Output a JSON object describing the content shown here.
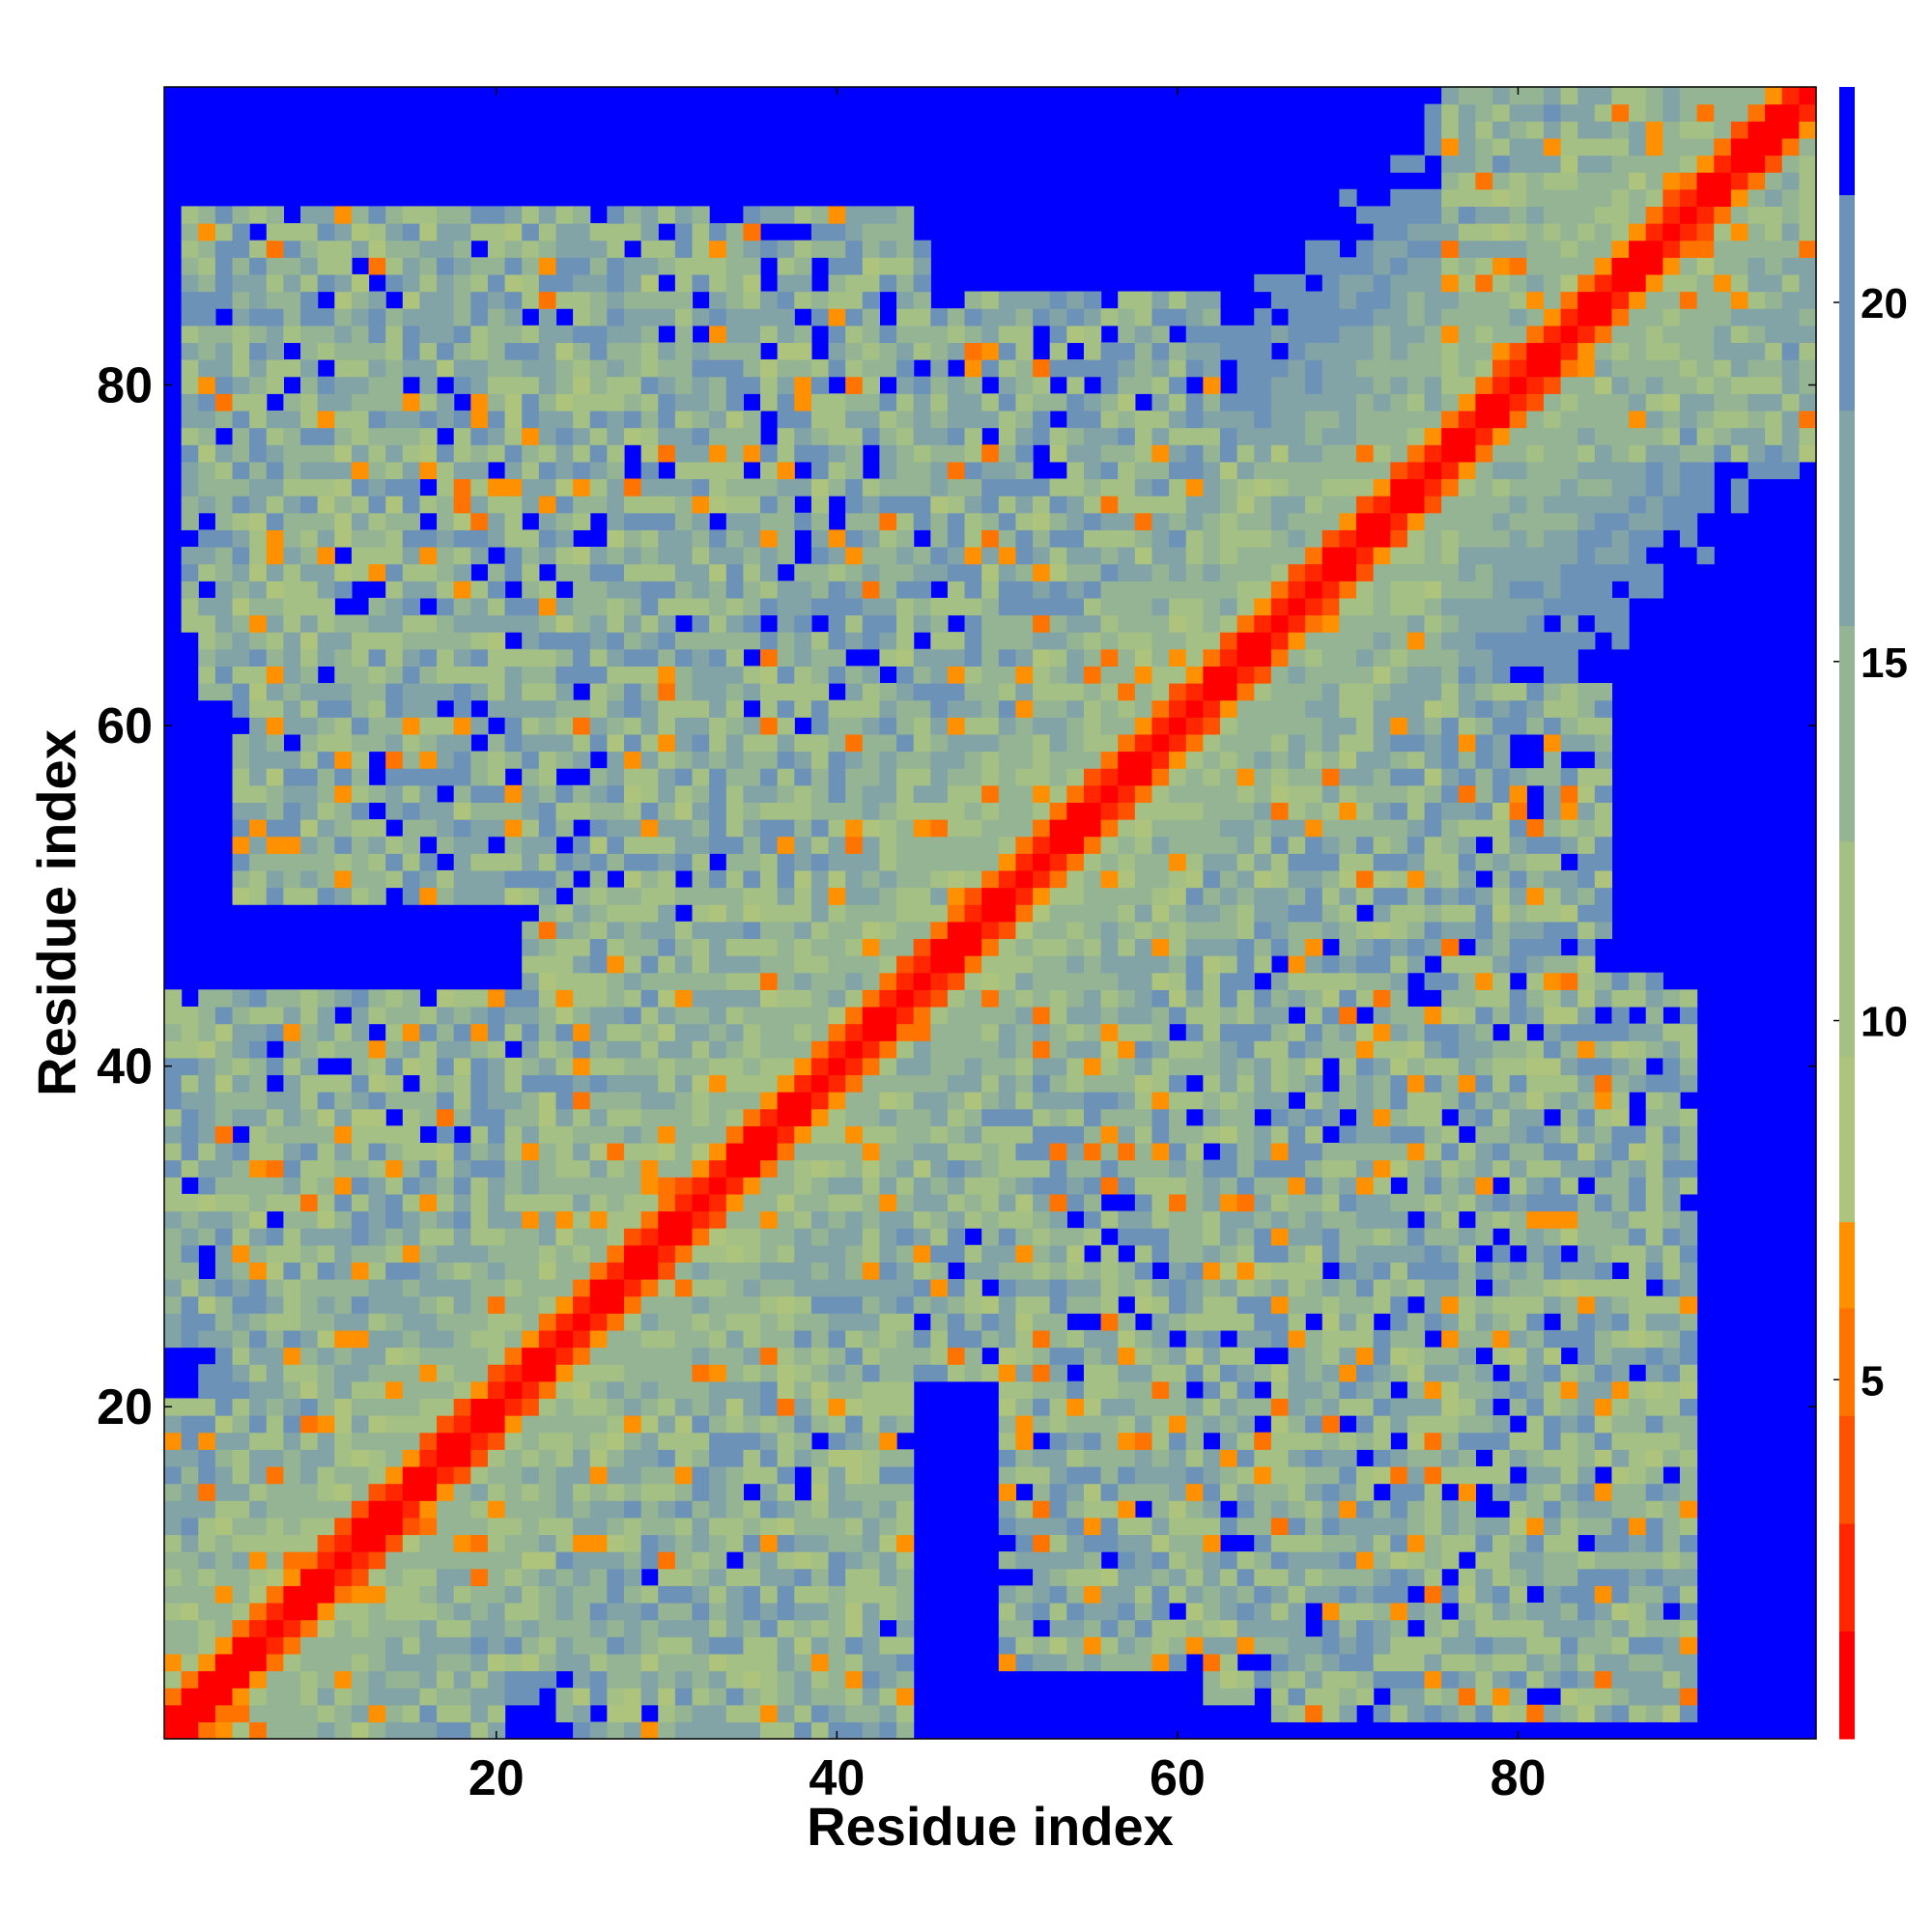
{
  "chart_data": {
    "type": "heatmap",
    "title": "",
    "xlabel": "Residue index",
    "ylabel": "Residue index",
    "n_residues": 97,
    "xlim": [
      1,
      97
    ],
    "ylim": [
      1,
      97
    ],
    "x_ticks": [
      20,
      40,
      60,
      80
    ],
    "y_ticks": [
      20,
      40,
      60,
      80
    ],
    "x_tick_labels": [
      "20",
      "40",
      "60",
      "80"
    ],
    "y_tick_labels": [
      "20",
      "40",
      "60",
      "80"
    ],
    "grid": false,
    "legend": "none",
    "colorbar": {
      "label": "",
      "range": [
        0,
        23
      ],
      "ticks": [
        5,
        10,
        15,
        20
      ],
      "tick_labels": [
        "5",
        "10",
        "15",
        "20"
      ],
      "bands": [
        {
          "min": 0,
          "max": 1.5,
          "color": "#ff0000"
        },
        {
          "min": 1.5,
          "max": 3.0,
          "color": "#ff2600"
        },
        {
          "min": 3.0,
          "max": 4.5,
          "color": "#ff5200"
        },
        {
          "min": 4.5,
          "max": 6.0,
          "color": "#ff7300"
        },
        {
          "min": 6.0,
          "max": 7.2,
          "color": "#ff9000"
        },
        {
          "min": 7.2,
          "max": 9.5,
          "color": "#aec47c"
        },
        {
          "min": 9.5,
          "max": 12.5,
          "color": "#a4c084"
        },
        {
          "min": 12.5,
          "max": 15.5,
          "color": "#94b494"
        },
        {
          "min": 15.5,
          "max": 18.5,
          "color": "#82a4a6"
        },
        {
          "min": 18.5,
          "max": 21.5,
          "color": "#6d92b8"
        },
        {
          "min": 21.5,
          "max": 23,
          "color": "#0000ff"
        }
      ]
    },
    "cutoff_value": 21.5,
    "contact_domains": [
      {
        "x": [
          1,
          20
        ],
        "y": [
          1,
          20
        ]
      },
      {
        "x": [
          20,
          42
        ],
        "y": [
          20,
          42
        ]
      },
      {
        "x": [
          40,
          60
        ],
        "y": [
          40,
          60
        ]
      },
      {
        "x": [
          58,
          76
        ],
        "y": [
          58,
          76
        ]
      },
      {
        "x": [
          76,
          97
        ],
        "y": [
          76,
          97
        ]
      },
      {
        "x": [
          3,
          20
        ],
        "y": [
          62,
          88
        ]
      },
      {
        "x": [
          22,
          45
        ],
        "y": [
          40,
          88
        ]
      },
      {
        "x": [
          48,
          62
        ],
        "y": [
          58,
          85
        ]
      },
      {
        "x": [
          5,
          22
        ],
        "y": [
          20,
          44
        ]
      },
      {
        "x": [
          24,
          44
        ],
        "y": [
          1,
          22
        ]
      },
      {
        "x": [
          50,
          64
        ],
        "y": [
          5,
          33
        ]
      },
      {
        "x": [
          66,
          90
        ],
        "y": [
          2,
          44
        ]
      },
      {
        "x": [
          62,
          84
        ],
        "y": [
          30,
          62
        ]
      }
    ]
  }
}
